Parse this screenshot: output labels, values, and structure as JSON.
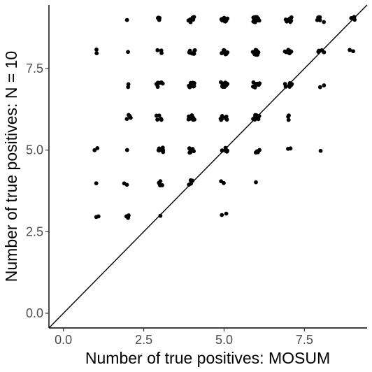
{
  "chart_data": {
    "type": "scatter",
    "title": "",
    "xlabel": "Number of true positives: MOSUM",
    "ylabel": "Number of true positives: N = 10",
    "xlim": [
      -0.45,
      9.45
    ],
    "ylim": [
      -0.45,
      9.45
    ],
    "x_ticks": [
      0,
      2.5,
      5,
      7.5
    ],
    "x_tick_labels": [
      "0.0",
      "2.5",
      "5.0",
      "7.5"
    ],
    "y_ticks": [
      0,
      2.5,
      5,
      7.5
    ],
    "y_tick_labels": [
      "0.0",
      "2.5",
      "5.0",
      "7.5"
    ],
    "grid": false,
    "reference_line": {
      "type": "identity",
      "slope": 1,
      "intercept": 0
    },
    "point_color": "#000000",
    "points_note_jitter": true,
    "clusters": [
      {
        "x": 1,
        "y": 8,
        "n": 2
      },
      {
        "x": 2,
        "y": 8,
        "n": 1
      },
      {
        "x": 3,
        "y": 8,
        "n": 3
      },
      {
        "x": 4,
        "y": 8,
        "n": 8
      },
      {
        "x": 5,
        "y": 8,
        "n": 10
      },
      {
        "x": 6,
        "y": 8,
        "n": 14
      },
      {
        "x": 7,
        "y": 8,
        "n": 8
      },
      {
        "x": 8,
        "y": 8,
        "n": 4
      },
      {
        "x": 9,
        "y": 8,
        "n": 2
      },
      {
        "x": 2,
        "y": 9,
        "n": 1
      },
      {
        "x": 3,
        "y": 9,
        "n": 4
      },
      {
        "x": 4,
        "y": 9,
        "n": 9
      },
      {
        "x": 5,
        "y": 9,
        "n": 10
      },
      {
        "x": 6,
        "y": 9,
        "n": 18
      },
      {
        "x": 7,
        "y": 9,
        "n": 12
      },
      {
        "x": 8,
        "y": 9,
        "n": 6
      },
      {
        "x": 9,
        "y": 9,
        "n": 4
      },
      {
        "x": 2,
        "y": 7,
        "n": 2
      },
      {
        "x": 3,
        "y": 7,
        "n": 7
      },
      {
        "x": 4,
        "y": 7,
        "n": 12
      },
      {
        "x": 5,
        "y": 7,
        "n": 14
      },
      {
        "x": 6,
        "y": 7,
        "n": 10
      },
      {
        "x": 7,
        "y": 7,
        "n": 8
      },
      {
        "x": 8,
        "y": 7,
        "n": 2
      },
      {
        "x": 2,
        "y": 6,
        "n": 4
      },
      {
        "x": 3,
        "y": 6,
        "n": 5
      },
      {
        "x": 4,
        "y": 6,
        "n": 10
      },
      {
        "x": 5,
        "y": 6,
        "n": 9
      },
      {
        "x": 6,
        "y": 6,
        "n": 8
      },
      {
        "x": 7,
        "y": 6,
        "n": 3
      },
      {
        "x": 1,
        "y": 5,
        "n": 2
      },
      {
        "x": 2,
        "y": 5,
        "n": 1
      },
      {
        "x": 3,
        "y": 5,
        "n": 8
      },
      {
        "x": 4,
        "y": 5,
        "n": 7
      },
      {
        "x": 5,
        "y": 5,
        "n": 8
      },
      {
        "x": 6,
        "y": 5,
        "n": 4
      },
      {
        "x": 7,
        "y": 5,
        "n": 2
      },
      {
        "x": 8,
        "y": 5,
        "n": 1
      },
      {
        "x": 1,
        "y": 4,
        "n": 1
      },
      {
        "x": 2,
        "y": 4,
        "n": 2
      },
      {
        "x": 3,
        "y": 4,
        "n": 5
      },
      {
        "x": 4,
        "y": 4,
        "n": 5
      },
      {
        "x": 5,
        "y": 4,
        "n": 2
      },
      {
        "x": 6,
        "y": 4,
        "n": 1
      },
      {
        "x": 1,
        "y": 3,
        "n": 2
      },
      {
        "x": 2,
        "y": 3,
        "n": 3
      },
      {
        "x": 3,
        "y": 3,
        "n": 1
      },
      {
        "x": 5,
        "y": 3,
        "n": 2
      }
    ]
  }
}
